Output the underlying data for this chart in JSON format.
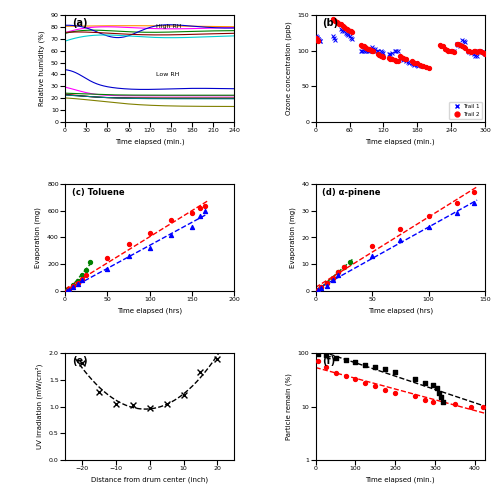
{
  "panel_a": {
    "title": "(a)",
    "xlabel": "Time elapsed (min.)",
    "ylabel": "Relative humidity (%)",
    "xlim": [
      0,
      240
    ],
    "ylim": [
      0,
      90
    ],
    "xticks": [
      0,
      30,
      60,
      90,
      120,
      150,
      180,
      210,
      240
    ],
    "yticks": [
      0,
      10,
      20,
      30,
      40,
      50,
      60,
      70,
      80,
      90
    ],
    "high_rh_label": "High RH",
    "low_rh_label": "Low RH"
  },
  "panel_b": {
    "title": "(b)",
    "xlabel": "Time elapsed (min.)",
    "ylabel": "Ozone concentration (ppb)",
    "xlim": [
      0,
      300
    ],
    "ylim": [
      0,
      150
    ],
    "xticks": [
      0,
      60,
      120,
      180,
      240,
      300
    ],
    "yticks": [
      0,
      50,
      100,
      150
    ],
    "legend_labels": [
      "Trail 1",
      "Trail 2"
    ],
    "trail1_color": "#0000ff",
    "trail2_color": "#ff0000"
  },
  "panel_c": {
    "title": "(c) Toluene",
    "xlabel": "Time elapsed (hrs)",
    "ylabel": "Evaporation (mg)",
    "xlim": [
      0,
      200
    ],
    "ylim": [
      0,
      800
    ],
    "xticks": [
      0,
      50,
      100,
      150,
      200
    ],
    "yticks": [
      0,
      200,
      400,
      600,
      800
    ],
    "green_x": [
      2,
      5,
      10,
      15,
      20,
      25,
      30
    ],
    "green_y": [
      5,
      15,
      45,
      75,
      120,
      160,
      220
    ],
    "red_x": [
      2,
      5,
      10,
      15,
      20,
      25,
      50,
      75,
      100,
      125,
      150,
      160,
      165
    ],
    "red_y": [
      3,
      12,
      35,
      60,
      90,
      120,
      250,
      350,
      430,
      530,
      580,
      620,
      635
    ],
    "blue_x": [
      2,
      5,
      10,
      15,
      20,
      50,
      75,
      100,
      125,
      150,
      160,
      165
    ],
    "blue_y": [
      2,
      10,
      30,
      55,
      80,
      165,
      260,
      320,
      420,
      480,
      560,
      600
    ]
  },
  "panel_d": {
    "title": "(d) α-pinene",
    "xlabel": "Time elapsed (hrs)",
    "ylabel": "Evaporation (mg)",
    "xlim": [
      0,
      150
    ],
    "ylim": [
      0,
      40
    ],
    "xticks": [
      0,
      50,
      100,
      150
    ],
    "yticks": [
      0,
      10,
      20,
      30,
      40
    ],
    "green_x": [
      2,
      5,
      10,
      15,
      20,
      25,
      30
    ],
    "green_y": [
      0.5,
      1.5,
      3,
      5,
      7,
      9,
      11
    ],
    "red_x": [
      2,
      5,
      10,
      15,
      20,
      25,
      50,
      75,
      100,
      125,
      140
    ],
    "red_y": [
      0.5,
      1.5,
      3,
      5,
      7,
      9,
      17,
      23,
      28,
      33,
      37
    ],
    "blue_x": [
      2,
      5,
      10,
      15,
      20,
      50,
      75,
      100,
      125,
      140
    ],
    "blue_y": [
      0.3,
      1,
      2,
      4,
      6,
      13,
      19,
      24,
      29,
      33
    ]
  },
  "panel_e": {
    "title": "(e)",
    "xlabel": "Distance from drum center (inch)",
    "ylabel": "UV irradiation (mW/cm²)",
    "xlim": [
      -25,
      25
    ],
    "ylim": [
      0.0,
      2.0
    ],
    "xticks": [
      -20,
      -10,
      0,
      10,
      20
    ],
    "yticks": [
      0.0,
      0.5,
      1.0,
      1.5,
      2.0
    ],
    "x_data": [
      -20,
      -15,
      -10,
      -5,
      0,
      5,
      10,
      15,
      20
    ],
    "y_data": [
      1.82,
      1.27,
      1.05,
      1.02,
      0.97,
      1.05,
      1.22,
      1.65,
      1.88
    ]
  },
  "panel_f": {
    "title": "(f)",
    "xlabel": "Time elapsed (min.)",
    "ylabel": "Particle remain (%)",
    "xlim": [
      0,
      425
    ],
    "ylim_log": [
      1,
      100
    ],
    "xticks": [
      0,
      100,
      200,
      300,
      400
    ],
    "black_x": [
      5,
      25,
      50,
      75,
      100,
      125,
      150,
      175,
      200,
      250,
      275,
      295,
      305,
      310,
      315,
      320
    ],
    "black_y": [
      97,
      90,
      82,
      75,
      68,
      60,
      55,
      50,
      44,
      33,
      28,
      25,
      22,
      18,
      15,
      12
    ],
    "red_x": [
      5,
      25,
      50,
      75,
      100,
      125,
      150,
      175,
      200,
      250,
      275,
      295,
      350,
      390,
      420
    ],
    "red_y": [
      70,
      55,
      43,
      38,
      32,
      28,
      24,
      20,
      18,
      16,
      13,
      12,
      11,
      10,
      10
    ]
  }
}
